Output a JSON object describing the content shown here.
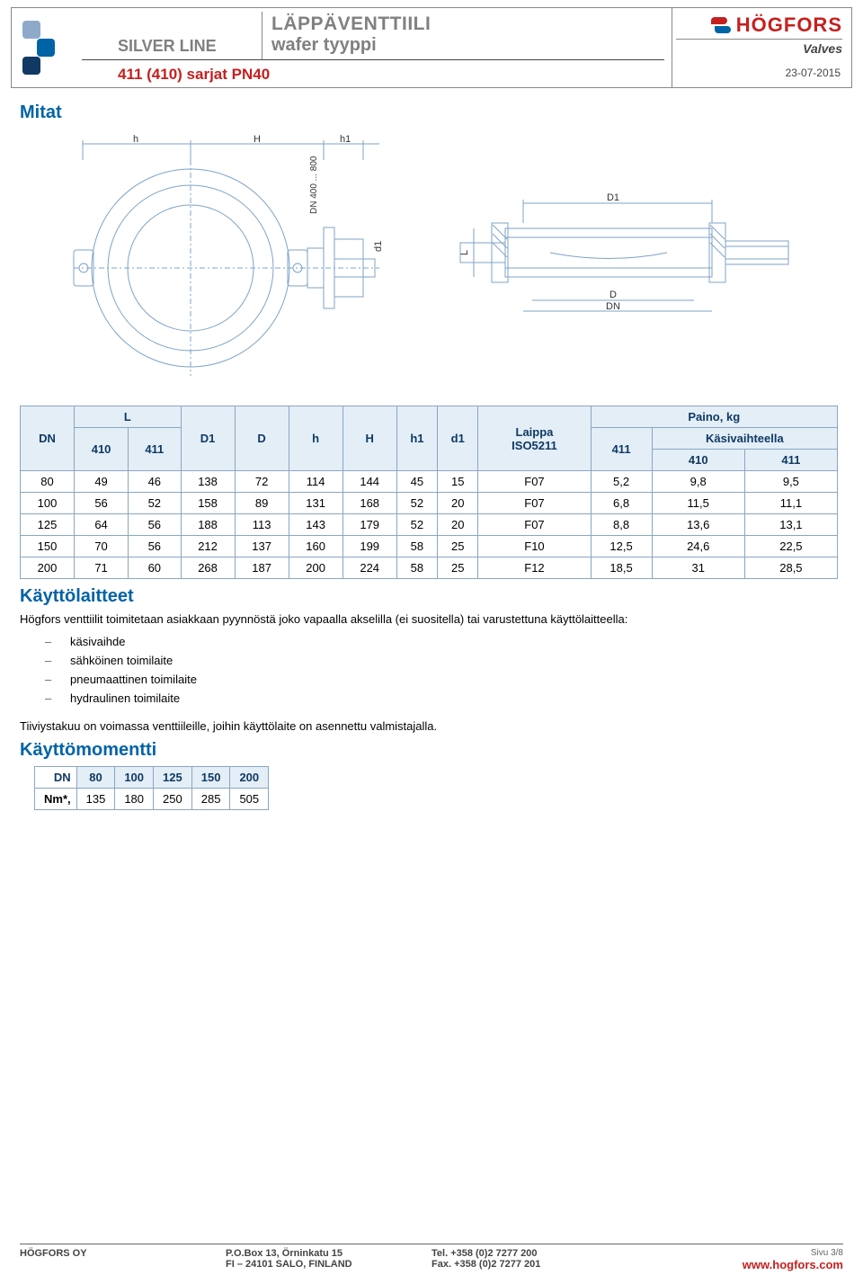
{
  "header": {
    "silver_line": "SILVER LINE",
    "title_line1": "LÄPPÄVENTTIILI",
    "title_line2": "wafer tyyppi",
    "series": "411 (410) sarjat PN40",
    "brand": "HÖGFORS",
    "brand_sub": "Valves",
    "date": "23-07-2015",
    "logo_colors": {
      "a": "#8ea9c9",
      "b": "#0063a6",
      "c": "#103a63"
    }
  },
  "sections": {
    "mitat": "Mitat",
    "actuators": "Käyttölaitteet",
    "torque": "Käyttömomentti"
  },
  "diagram": {
    "h": "h",
    "H": "H",
    "h1": "h1",
    "d1": "d1",
    "dn_range": "DN 400 ... 800",
    "D1": "D1",
    "L": "L",
    "D": "D",
    "DN": "DN",
    "stroke": "#7fa3c7",
    "stroke_width": 1
  },
  "dim_table": {
    "headers": {
      "DN": "DN",
      "L": "L",
      "410": "410",
      "411": "411",
      "D1": "D1",
      "D": "D",
      "h": "h",
      "H": "H",
      "h1": "h1",
      "d1": "d1",
      "flange": "Laippa\nISO5211",
      "weight": "Paino, kg",
      "handlever": "Käsivaihteella"
    },
    "rows": [
      [
        "80",
        "49",
        "46",
        "138",
        "72",
        "114",
        "144",
        "45",
        "15",
        "F07",
        "5,2",
        "9,8",
        "9,5"
      ],
      [
        "100",
        "56",
        "52",
        "158",
        "89",
        "131",
        "168",
        "52",
        "20",
        "F07",
        "6,8",
        "11,5",
        "11,1"
      ],
      [
        "125",
        "64",
        "56",
        "188",
        "113",
        "143",
        "179",
        "52",
        "20",
        "F07",
        "8,8",
        "13,6",
        "13,1"
      ],
      [
        "150",
        "70",
        "56",
        "212",
        "137",
        "160",
        "199",
        "58",
        "25",
        "F10",
        "12,5",
        "24,6",
        "22,5"
      ],
      [
        "200",
        "71",
        "60",
        "268",
        "187",
        "200",
        "224",
        "58",
        "25",
        "F12",
        "18,5",
        "31",
        "28,5"
      ]
    ]
  },
  "actuators": {
    "intro": "Högfors venttiilit toimitetaan asiakkaan pyynnöstä joko vapaalla akselilla (ei suositella) tai varustettuna käyttölaitteella:",
    "items": [
      "käsivaihde",
      "sähköinen toimilaite",
      "pneumaattinen toimilaite",
      "hydraulinen toimilaite"
    ],
    "note": "Tiiviystakuu on voimassa venttiileille, joihin käyttölaite on asennettu valmistajalla."
  },
  "torque_table": {
    "dn_label": "DN",
    "nm_label": "Nm*,",
    "cols": [
      "80",
      "100",
      "125",
      "150",
      "200"
    ],
    "vals": [
      "135",
      "180",
      "250",
      "285",
      "505"
    ]
  },
  "footer": {
    "company": "HÖGFORS OY",
    "addr1": "P.O.Box 13, Örninkatu 15",
    "addr2": "FI – 24101 SALO, FINLAND",
    "tel": "Tel.  +358 (0)2 7277 200",
    "fax": "Fax. +358 (0)2 7277 201",
    "page": "Sivu 3/8",
    "url": "www.hogfors.com"
  },
  "colors": {
    "heading": "#0063a6",
    "table_border": "#8aa6c2",
    "table_header_bg": "#e3eef7",
    "brand_red": "#c5201f"
  }
}
